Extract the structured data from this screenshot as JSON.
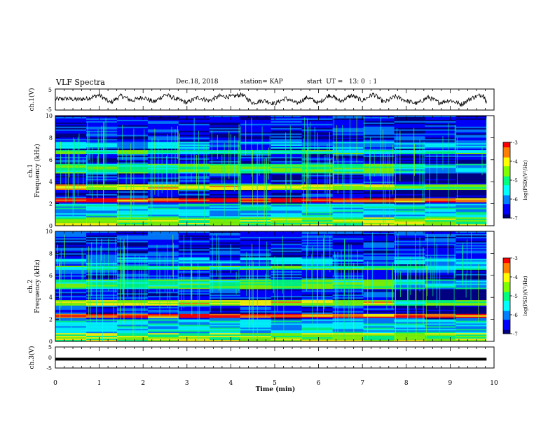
{
  "header": {
    "title": "VLF Spectra",
    "date": "Dec.18, 2018",
    "station": "station= KAP",
    "start": "start  UT =   13: 0  : 1"
  },
  "chart_data": [
    {
      "type": "line",
      "name": "ch1-waveform",
      "ylabel": "ch.1(V)",
      "xlim": [
        0,
        10
      ],
      "ylim": [
        -5,
        5
      ],
      "yticks": [
        "5",
        "-5"
      ],
      "x": [
        0,
        0.25,
        0.5,
        0.75,
        1,
        1.25,
        1.5,
        1.75,
        2,
        2.25,
        2.5,
        2.75,
        3,
        3.25,
        3.5,
        3.75,
        4,
        4.25,
        4.5,
        4.75,
        5,
        5.25,
        5.5,
        5.75,
        6,
        6.25,
        6.5,
        6.75,
        7,
        7.25,
        7.5,
        7.75,
        8,
        8.25,
        8.5,
        8.75,
        9,
        9.25,
        9.5,
        9.75,
        9.83
      ],
      "y": [
        0.2,
        0.4,
        0,
        0.6,
        2.2,
        -1.5,
        1.8,
        -0.5,
        1.2,
        -1.2,
        2.4,
        0.3,
        -1.5,
        1,
        -0.6,
        1.6,
        1.3,
        2.4,
        -1.6,
        -0.4,
        -2,
        0.6,
        -1.8,
        1.1,
        -1.7,
        2.3,
        -0.8,
        1.9,
        -0.5,
        2.6,
        -1.4,
        1.5,
        -0.6,
        -1.9,
        1.2,
        -1.5,
        -0.3,
        -2.3,
        0.8,
        2.4,
        -1.4
      ]
    },
    {
      "type": "heatmap",
      "name": "ch1-spectrogram",
      "ylabel": "ch.1",
      "ylabel2": "Frequency (kHz)",
      "xlim": [
        0,
        9.83
      ],
      "ylim": [
        0,
        10
      ],
      "yticks": [
        "0",
        "2",
        "4",
        "6",
        "8",
        "10"
      ],
      "colorbar_label": "log(PSD)(V²/Hz)",
      "colorbar_ticks": [
        "-3",
        "-4",
        "-5",
        "-6",
        "-7"
      ],
      "colorbar_range": [
        -7,
        -3
      ],
      "transition_min": 7.6,
      "background_level": -6.5
    },
    {
      "type": "heatmap",
      "name": "ch2-spectrogram",
      "ylabel": "ch.2",
      "ylabel2": "Frequency (kHz)",
      "xlim": [
        0,
        9.83
      ],
      "ylim": [
        0,
        10
      ],
      "yticks": [
        "0",
        "2",
        "4",
        "6",
        "8",
        "10"
      ],
      "colorbar_label": "log(PSD)(V²/Hz)",
      "colorbar_ticks": [
        "-3",
        "-4",
        "-5",
        "-6",
        "-7"
      ],
      "colorbar_range": [
        -7,
        -3
      ],
      "transition_min": 7.6,
      "background_level": -6.4
    },
    {
      "type": "line",
      "name": "ch3-waveform",
      "ylabel": "ch.3(V)",
      "xlim": [
        0,
        10
      ],
      "ylim": [
        -5,
        5
      ],
      "yticks": [
        "5",
        "0",
        "-5"
      ],
      "x": [
        0,
        9.83
      ],
      "y": [
        -0.8,
        -0.8
      ]
    }
  ],
  "xaxis": {
    "label": "Time  (min)",
    "ticks": [
      "0",
      "1",
      "2",
      "3",
      "4",
      "5",
      "6",
      "7",
      "8",
      "9",
      "10"
    ],
    "range": [
      0,
      10
    ]
  },
  "colormap": [
    "#000080",
    "#0000ff",
    "#0080ff",
    "#00ffff",
    "#00ff80",
    "#80ff00",
    "#ffff00",
    "#ff8000",
    "#ff0000",
    "#ffffff"
  ]
}
